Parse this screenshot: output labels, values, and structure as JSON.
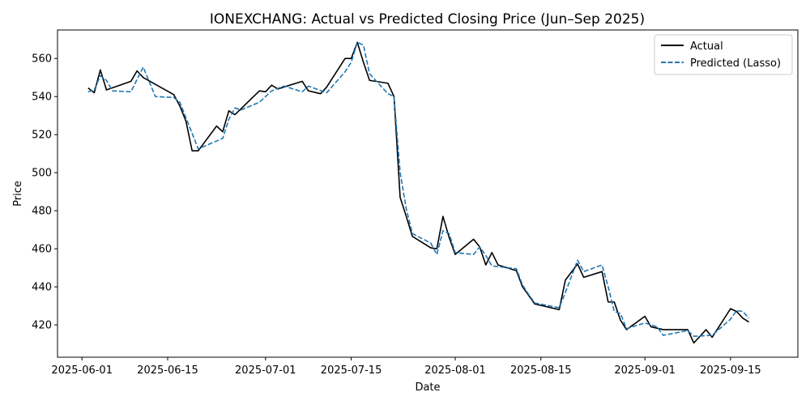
{
  "chart_data": {
    "type": "line",
    "title": "IONEXCHANG: Actual vs Predicted Closing Price (Jun–Sep 2025)",
    "xlabel": "Date",
    "ylabel": "Price",
    "xlim": [
      "2025-05-28",
      "2025-09-26"
    ],
    "ylim": [
      403,
      575
    ],
    "x_ticks": [
      "2025-06-01",
      "2025-06-15",
      "2025-07-01",
      "2025-07-15",
      "2025-08-01",
      "2025-08-15",
      "2025-09-01",
      "2025-09-15"
    ],
    "y_ticks": [
      420,
      440,
      460,
      480,
      500,
      520,
      540,
      560
    ],
    "grid": false,
    "legend_position": "top-right",
    "series": [
      {
        "name": "Actual",
        "color": "#000000",
        "style": "solid",
        "points": [
          [
            "2025-06-02",
            544.5
          ],
          [
            "2025-06-03",
            542.0
          ],
          [
            "2025-06-04",
            554.0
          ],
          [
            "2025-06-05",
            543.5
          ],
          [
            "2025-06-09",
            548.0
          ],
          [
            "2025-06-10",
            553.5
          ],
          [
            "2025-06-11",
            550.0
          ],
          [
            "2025-06-16",
            541.0
          ],
          [
            "2025-06-17",
            535.0
          ],
          [
            "2025-06-18",
            527.0
          ],
          [
            "2025-06-19",
            511.5
          ],
          [
            "2025-06-20",
            511.5
          ],
          [
            "2025-06-23",
            524.5
          ],
          [
            "2025-06-24",
            521.5
          ],
          [
            "2025-06-25",
            532.5
          ],
          [
            "2025-06-26",
            530.5
          ],
          [
            "2025-06-30",
            543.0
          ],
          [
            "2025-07-01",
            542.5
          ],
          [
            "2025-07-02",
            546.0
          ],
          [
            "2025-07-03",
            544.0
          ],
          [
            "2025-07-07",
            548.0
          ],
          [
            "2025-07-08",
            543.0
          ],
          [
            "2025-07-10",
            541.5
          ],
          [
            "2025-07-11",
            545.0
          ],
          [
            "2025-07-14",
            560.0
          ],
          [
            "2025-07-15",
            560.0
          ],
          [
            "2025-07-16",
            568.5
          ],
          [
            "2025-07-17",
            558.0
          ],
          [
            "2025-07-18",
            548.5
          ],
          [
            "2025-07-21",
            547.0
          ],
          [
            "2025-07-22",
            540.0
          ],
          [
            "2025-07-23",
            487.0
          ],
          [
            "2025-07-24",
            477.0
          ],
          [
            "2025-07-25",
            466.5
          ],
          [
            "2025-07-28",
            460.5
          ],
          [
            "2025-07-29",
            460.0
          ],
          [
            "2025-07-30",
            477.0
          ],
          [
            "2025-07-31",
            466.0
          ],
          [
            "2025-08-01",
            457.0
          ],
          [
            "2025-08-04",
            465.0
          ],
          [
            "2025-08-05",
            461.0
          ],
          [
            "2025-08-06",
            451.5
          ],
          [
            "2025-08-07",
            458.0
          ],
          [
            "2025-08-08",
            451.5
          ],
          [
            "2025-08-11",
            448.5
          ],
          [
            "2025-08-12",
            440.0
          ],
          [
            "2025-08-14",
            431.0
          ],
          [
            "2025-08-18",
            428.0
          ],
          [
            "2025-08-19",
            443.5
          ],
          [
            "2025-08-21",
            452.0
          ],
          [
            "2025-08-22",
            445.0
          ],
          [
            "2025-08-25",
            448.0
          ],
          [
            "2025-08-26",
            432.0
          ],
          [
            "2025-08-27",
            432.0
          ],
          [
            "2025-08-28",
            422.5
          ],
          [
            "2025-08-29",
            417.5
          ],
          [
            "2025-09-01",
            424.5
          ],
          [
            "2025-09-02",
            419.0
          ],
          [
            "2025-09-04",
            417.5
          ],
          [
            "2025-09-08",
            417.5
          ],
          [
            "2025-09-09",
            410.5
          ],
          [
            "2025-09-11",
            417.5
          ],
          [
            "2025-09-12",
            413.5
          ],
          [
            "2025-09-15",
            428.5
          ],
          [
            "2025-09-16",
            427.0
          ],
          [
            "2025-09-17",
            423.5
          ],
          [
            "2025-09-18",
            421.5
          ]
        ]
      },
      {
        "name": "Predicted (Lasso)",
        "color": "#1f77b4",
        "style": "dashed",
        "points": [
          [
            "2025-06-02",
            542.5
          ],
          [
            "2025-06-03",
            543.5
          ],
          [
            "2025-06-04",
            551.0
          ],
          [
            "2025-06-05",
            548.5
          ],
          [
            "2025-06-06",
            543.0
          ],
          [
            "2025-06-09",
            542.5
          ],
          [
            "2025-06-11",
            555.5
          ],
          [
            "2025-06-13",
            540.0
          ],
          [
            "2025-06-16",
            539.5
          ],
          [
            "2025-06-17",
            537.0
          ],
          [
            "2025-06-20",
            512.5
          ],
          [
            "2025-06-24",
            518.0
          ],
          [
            "2025-06-25",
            528.0
          ],
          [
            "2025-06-26",
            534.0
          ],
          [
            "2025-06-27",
            533.0
          ],
          [
            "2025-06-30",
            537.0
          ],
          [
            "2025-07-02",
            543.0
          ],
          [
            "2025-07-04",
            545.5
          ],
          [
            "2025-07-07",
            542.5
          ],
          [
            "2025-07-08",
            545.5
          ],
          [
            "2025-07-11",
            542.0
          ],
          [
            "2025-07-14",
            553.0
          ],
          [
            "2025-07-15",
            558.0
          ],
          [
            "2025-07-16",
            568.5
          ],
          [
            "2025-07-17",
            567.0
          ],
          [
            "2025-07-18",
            552.0
          ],
          [
            "2025-07-21",
            541.5
          ],
          [
            "2025-07-22",
            540.0
          ],
          [
            "2025-07-23",
            500.0
          ],
          [
            "2025-07-24",
            481.0
          ],
          [
            "2025-07-25",
            468.0
          ],
          [
            "2025-07-28",
            463.0
          ],
          [
            "2025-07-29",
            457.0
          ],
          [
            "2025-07-30",
            469.5
          ],
          [
            "2025-07-31",
            468.0
          ],
          [
            "2025-08-01",
            458.0
          ],
          [
            "2025-08-04",
            457.0
          ],
          [
            "2025-08-05",
            461.0
          ],
          [
            "2025-08-06",
            456.5
          ],
          [
            "2025-08-07",
            451.0
          ],
          [
            "2025-08-11",
            449.5
          ],
          [
            "2025-08-12",
            441.0
          ],
          [
            "2025-08-13",
            436.0
          ],
          [
            "2025-08-14",
            431.5
          ],
          [
            "2025-08-18",
            429.0
          ],
          [
            "2025-08-19",
            437.0
          ],
          [
            "2025-08-21",
            454.0
          ],
          [
            "2025-08-22",
            448.0
          ],
          [
            "2025-08-25",
            451.5
          ],
          [
            "2025-08-26",
            440.0
          ],
          [
            "2025-08-27",
            427.0
          ],
          [
            "2025-08-28",
            426.0
          ],
          [
            "2025-08-29",
            418.0
          ],
          [
            "2025-09-01",
            421.0
          ],
          [
            "2025-09-03",
            419.0
          ],
          [
            "2025-09-04",
            414.5
          ],
          [
            "2025-09-08",
            417.0
          ],
          [
            "2025-09-09",
            414.0
          ],
          [
            "2025-09-12",
            414.5
          ],
          [
            "2025-09-15",
            423.0
          ],
          [
            "2025-09-16",
            427.5
          ],
          [
            "2025-09-17",
            427.0
          ],
          [
            "2025-09-18",
            423.5
          ]
        ]
      }
    ]
  }
}
